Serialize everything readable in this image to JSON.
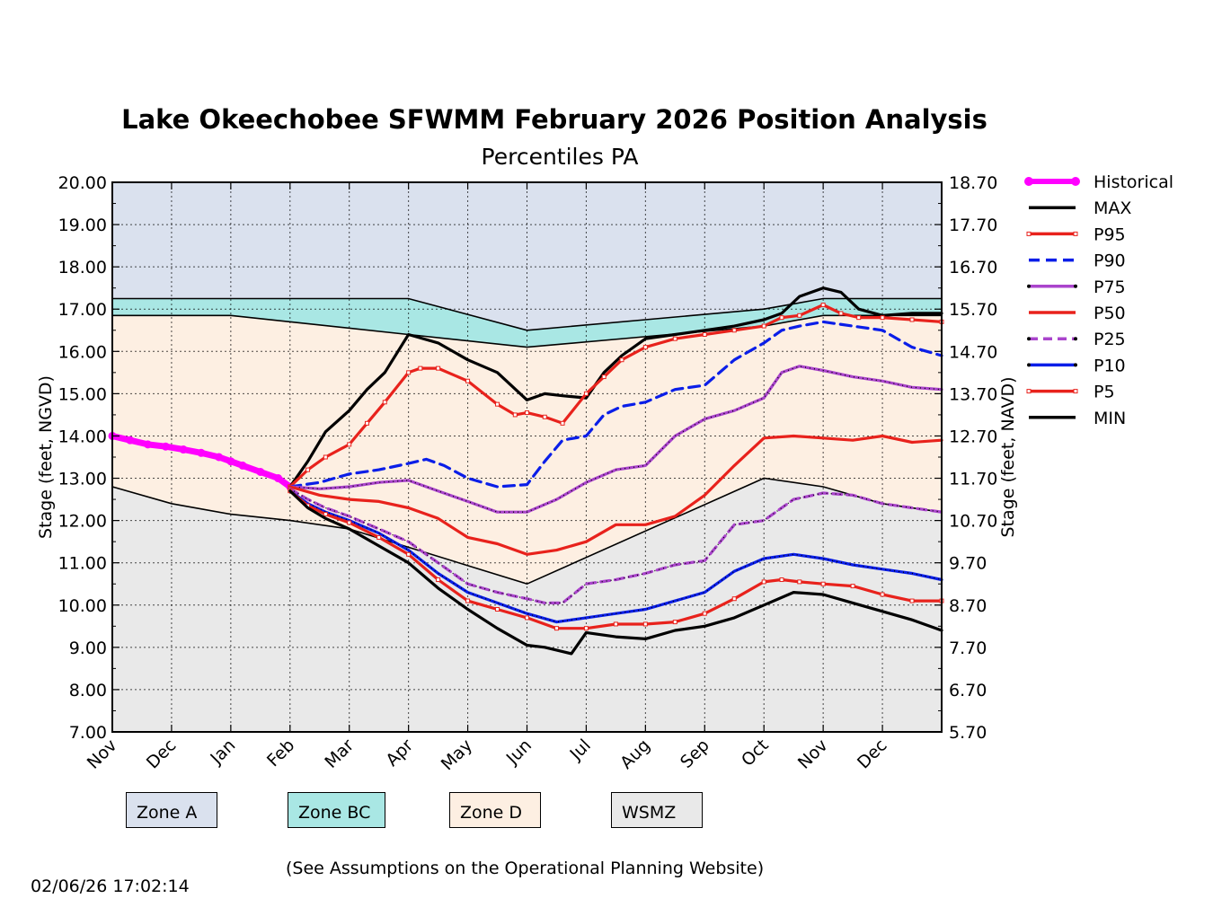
{
  "chart_data": {
    "type": "line",
    "title": "Lake Okeechobee SFWMM February 2026 Position Analysis",
    "subtitle": "Percentiles PA",
    "ylabel": "Stage (feet, NGVD)",
    "ylabel_right": "Stage (feet, NAVD)",
    "ylim": [
      7.0,
      20.0
    ],
    "xlim": [
      0,
      14
    ],
    "yticks": [
      "20.00",
      "19.00",
      "18.00",
      "17.00",
      "16.00",
      "15.00",
      "14.00",
      "13.00",
      "12.00",
      "11.00",
      "10.00",
      "9.00",
      "8.00",
      "7.00"
    ],
    "yticks_right": [
      "18.70",
      "17.70",
      "16.70",
      "15.70",
      "14.70",
      "13.70",
      "12.70",
      "11.70",
      "10.70",
      "9.70",
      "8.70",
      "7.70",
      "6.70",
      "5.70"
    ],
    "xticks": [
      "Nov",
      "Dec",
      "Jan",
      "Feb",
      "Mar",
      "Apr",
      "May",
      "Jun",
      "Jul",
      "Aug",
      "Sep",
      "Oct",
      "Nov",
      "Dec"
    ],
    "grid": true,
    "zones": [
      {
        "name": "Zone A",
        "color": "#dae1ee"
      },
      {
        "name": "Zone BC",
        "color": "#a9e7e4"
      },
      {
        "name": "Zone D",
        "color": "#fdefe2"
      },
      {
        "name": "WSMZ",
        "color": "#e9e9e9"
      }
    ],
    "zone_boundaries": {
      "x": [
        0,
        2,
        5,
        7,
        11,
        12,
        14
      ],
      "top_a": [
        17.25,
        17.25,
        17.25,
        16.5,
        17.0,
        17.25,
        17.25
      ],
      "top_bc": [
        16.85,
        16.85,
        16.4,
        16.1,
        16.6,
        16.85,
        16.85
      ],
      "wsmz_x": [
        0,
        1,
        2,
        3,
        4,
        7,
        11,
        12,
        13,
        14
      ],
      "wsmz": [
        12.8,
        12.4,
        12.15,
        12.0,
        11.8,
        10.5,
        13.0,
        12.8,
        12.4,
        12.2
      ]
    },
    "series": [
      {
        "name": "Historical",
        "color": "#ff00ff",
        "style": "marker",
        "x": [
          0,
          0.3,
          0.6,
          0.9,
          1.2,
          1.5,
          1.8,
          2.0,
          2.2,
          2.5,
          2.8,
          3.0
        ],
        "y": [
          14.0,
          13.9,
          13.8,
          13.75,
          13.68,
          13.6,
          13.5,
          13.4,
          13.3,
          13.15,
          13.0,
          12.8
        ]
      },
      {
        "name": "MAX",
        "color": "#000000",
        "style": "solid",
        "x": [
          3,
          3.3,
          3.6,
          4,
          4.3,
          4.6,
          5,
          5.5,
          6,
          6.5,
          7,
          7.3,
          7.6,
          8,
          8.3,
          8.6,
          9,
          9.5,
          10,
          10.5,
          11,
          11.3,
          11.6,
          12,
          12.3,
          12.6,
          13,
          13.5,
          14
        ],
        "y": [
          12.8,
          13.4,
          14.1,
          14.6,
          15.1,
          15.5,
          16.4,
          16.2,
          15.8,
          15.5,
          14.85,
          15.0,
          14.95,
          14.9,
          15.5,
          15.9,
          16.3,
          16.4,
          16.5,
          16.6,
          16.75,
          16.9,
          17.3,
          17.5,
          17.4,
          17.0,
          16.85,
          16.9,
          16.9
        ]
      },
      {
        "name": "P95",
        "color": "#e8221c",
        "style": "square",
        "x": [
          3,
          3.3,
          3.6,
          4,
          4.3,
          4.6,
          5,
          5.2,
          5.5,
          6,
          6.5,
          6.8,
          7,
          7.3,
          7.6,
          8,
          8.3,
          8.6,
          9,
          9.5,
          10,
          10.5,
          11,
          11.3,
          11.6,
          12,
          12.3,
          12.6,
          13,
          13.5,
          14
        ],
        "y": [
          12.8,
          13.2,
          13.5,
          13.8,
          14.3,
          14.8,
          15.5,
          15.6,
          15.6,
          15.3,
          14.75,
          14.5,
          14.55,
          14.45,
          14.3,
          15.0,
          15.4,
          15.8,
          16.1,
          16.3,
          16.4,
          16.5,
          16.6,
          16.8,
          16.85,
          17.1,
          16.9,
          16.8,
          16.8,
          16.75,
          16.7
        ]
      },
      {
        "name": "P90",
        "color": "#0a1ee8",
        "style": "dashed",
        "x": [
          3,
          3.5,
          4,
          4.5,
          5,
          5.3,
          5.6,
          6,
          6.5,
          7,
          7.3,
          7.6,
          8,
          8.3,
          8.6,
          9,
          9.5,
          10,
          10.5,
          11,
          11.3,
          11.6,
          12,
          12.5,
          13,
          13.5,
          14
        ],
        "y": [
          12.8,
          12.9,
          13.1,
          13.2,
          13.35,
          13.45,
          13.3,
          13.0,
          12.8,
          12.85,
          13.4,
          13.9,
          14.0,
          14.5,
          14.7,
          14.8,
          15.1,
          15.2,
          15.8,
          16.2,
          16.5,
          16.6,
          16.7,
          16.6,
          16.5,
          16.1,
          15.9
        ]
      },
      {
        "name": "P75",
        "color": "#aa44cc",
        "style": "dotted-solid",
        "x": [
          3,
          3.5,
          4,
          4.5,
          5,
          5.5,
          6,
          6.5,
          7,
          7.5,
          8,
          8.5,
          9,
          9.5,
          10,
          10.5,
          11,
          11.3,
          11.6,
          12,
          12.5,
          13,
          13.5,
          14
        ],
        "y": [
          12.8,
          12.75,
          12.8,
          12.9,
          12.95,
          12.7,
          12.45,
          12.2,
          12.2,
          12.5,
          12.9,
          13.2,
          13.3,
          14.0,
          14.4,
          14.6,
          14.9,
          15.5,
          15.65,
          15.55,
          15.4,
          15.3,
          15.15,
          15.1
        ]
      },
      {
        "name": "P50",
        "color": "#e8221c",
        "style": "solid",
        "x": [
          3,
          3.5,
          4,
          4.5,
          5,
          5.5,
          6,
          6.5,
          7,
          7.5,
          8,
          8.5,
          9,
          9.5,
          10,
          10.5,
          11,
          11.5,
          12,
          12.5,
          13,
          13.5,
          14
        ],
        "y": [
          12.8,
          12.6,
          12.5,
          12.45,
          12.3,
          12.05,
          11.6,
          11.45,
          11.2,
          11.3,
          11.5,
          11.9,
          11.9,
          12.1,
          12.6,
          13.3,
          13.95,
          14.0,
          13.95,
          13.9,
          14.0,
          13.85,
          13.9
        ]
      },
      {
        "name": "P25",
        "color": "#aa44cc",
        "style": "dashed-dotted",
        "x": [
          3,
          3.3,
          3.6,
          4,
          4.5,
          5,
          5.5,
          6,
          6.5,
          7,
          7.3,
          7.6,
          8,
          8.5,
          9,
          9.5,
          10,
          10.5,
          11,
          11.5,
          12,
          12.5,
          13,
          13.5,
          14
        ],
        "y": [
          12.75,
          12.5,
          12.3,
          12.1,
          11.8,
          11.5,
          11.0,
          10.5,
          10.3,
          10.15,
          10.05,
          10.05,
          10.5,
          10.6,
          10.75,
          10.95,
          11.05,
          11.9,
          12.0,
          12.5,
          12.65,
          12.6,
          12.4,
          12.3,
          12.2
        ]
      },
      {
        "name": "P10",
        "color": "#0a1ee8",
        "style": "solid-dotted",
        "x": [
          3,
          3.3,
          3.6,
          4,
          4.5,
          5,
          5.5,
          6,
          6.5,
          7,
          7.5,
          8,
          8.5,
          9,
          9.5,
          10,
          10.5,
          11,
          11.5,
          12,
          12.5,
          13,
          13.5,
          14
        ],
        "y": [
          12.7,
          12.4,
          12.2,
          12.0,
          11.7,
          11.3,
          10.75,
          10.3,
          10.05,
          9.8,
          9.6,
          9.7,
          9.8,
          9.9,
          10.1,
          10.3,
          10.8,
          11.1,
          11.2,
          11.1,
          10.95,
          10.85,
          10.75,
          10.6
        ]
      },
      {
        "name": "P5",
        "color": "#e8221c",
        "style": "square",
        "x": [
          3,
          3.3,
          3.6,
          4,
          4.5,
          5,
          5.5,
          6,
          6.5,
          7,
          7.5,
          8,
          8.5,
          9,
          9.5,
          10,
          10.5,
          11,
          11.3,
          11.6,
          12,
          12.5,
          13,
          13.5,
          14
        ],
        "y": [
          12.7,
          12.35,
          12.15,
          11.95,
          11.6,
          11.2,
          10.6,
          10.1,
          9.9,
          9.7,
          9.45,
          9.45,
          9.55,
          9.55,
          9.6,
          9.8,
          10.15,
          10.55,
          10.6,
          10.55,
          10.5,
          10.45,
          10.25,
          10.1,
          10.1
        ]
      },
      {
        "name": "MIN",
        "color": "#000000",
        "style": "solid",
        "x": [
          3,
          3.3,
          3.6,
          4,
          4.5,
          5,
          5.5,
          6,
          6.5,
          7,
          7.3,
          7.6,
          7.75,
          8,
          8.5,
          9,
          9.5,
          10,
          10.5,
          11,
          11.5,
          12,
          12.5,
          13,
          13.5,
          14
        ],
        "y": [
          12.7,
          12.3,
          12.05,
          11.8,
          11.4,
          11.0,
          10.4,
          9.9,
          9.45,
          9.05,
          9.0,
          8.9,
          8.85,
          9.35,
          9.25,
          9.2,
          9.4,
          9.5,
          9.7,
          10.0,
          10.3,
          10.25,
          10.05,
          9.85,
          9.65,
          9.4
        ]
      }
    ]
  },
  "legend": [
    {
      "label": "Historical",
      "color": "#ff00ff",
      "style": "marker"
    },
    {
      "label": "MAX",
      "color": "#000000",
      "style": "solid"
    },
    {
      "label": "P95",
      "color": "#e8221c",
      "style": "square"
    },
    {
      "label": "P90",
      "color": "#0a1ee8",
      "style": "dashed"
    },
    {
      "label": "P75",
      "color": "#aa44cc",
      "style": "dotted-solid"
    },
    {
      "label": "P50",
      "color": "#e8221c",
      "style": "solid"
    },
    {
      "label": "P25",
      "color": "#aa44cc",
      "style": "dashed-dotted"
    },
    {
      "label": "P10",
      "color": "#0a1ee8",
      "style": "solid-dotted"
    },
    {
      "label": "P5",
      "color": "#e8221c",
      "style": "square"
    },
    {
      "label": "MIN",
      "color": "#000000",
      "style": "solid"
    }
  ],
  "zone_legend": {
    "zone_a": "Zone A",
    "zone_bc": "Zone BC",
    "zone_d": "Zone D",
    "wsmz": "WSMZ"
  },
  "footer": {
    "note": "(See Assumptions on the Operational Planning Website)",
    "timestamp": "02/06/26 17:02:14"
  }
}
